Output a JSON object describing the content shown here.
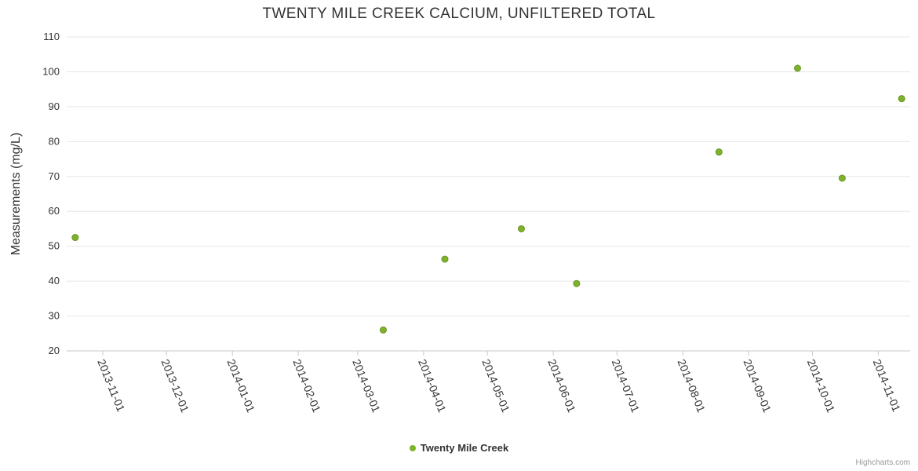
{
  "credit": "Highcharts.com",
  "colors": {
    "background": "#ffffff",
    "grid": "#e6e6e6",
    "axis": "#c8c8c8",
    "label_text": "#333333",
    "credit_text": "#999999",
    "marker_fill": "#7db32a",
    "marker_stroke": "#679422"
  },
  "chart_data": {
    "type": "scatter",
    "title": "TWENTY MILE CREEK CALCIUM, UNFILTERED TOTAL",
    "xlabel": "",
    "ylabel": "Measurements (mg/L)",
    "series_name": "Twenty Mile Creek",
    "legend_position": "bottom-center",
    "grid": true,
    "ylim": [
      20,
      110
    ],
    "yticks": [
      20,
      30,
      40,
      50,
      60,
      70,
      80,
      90,
      100,
      110
    ],
    "xticks": [
      "2013-11-01",
      "2013-12-01",
      "2014-01-01",
      "2014-02-01",
      "2014-03-01",
      "2014-04-01",
      "2014-05-01",
      "2014-06-01",
      "2014-07-01",
      "2014-08-01",
      "2014-09-01",
      "2014-10-01",
      "2014-11-01"
    ],
    "x_range": [
      "2013-10-15",
      "2014-11-16"
    ],
    "points": [
      {
        "date": "2013-10-19",
        "value": 52.5
      },
      {
        "date": "2014-03-13",
        "value": 26.0
      },
      {
        "date": "2014-04-11",
        "value": 46.3
      },
      {
        "date": "2014-05-17",
        "value": 55.0
      },
      {
        "date": "2014-06-12",
        "value": 39.3
      },
      {
        "date": "2014-08-18",
        "value": 77.0
      },
      {
        "date": "2014-09-24",
        "value": 101.0
      },
      {
        "date": "2014-10-15",
        "value": 69.5
      },
      {
        "date": "2014-11-12",
        "value": 92.3
      }
    ]
  }
}
